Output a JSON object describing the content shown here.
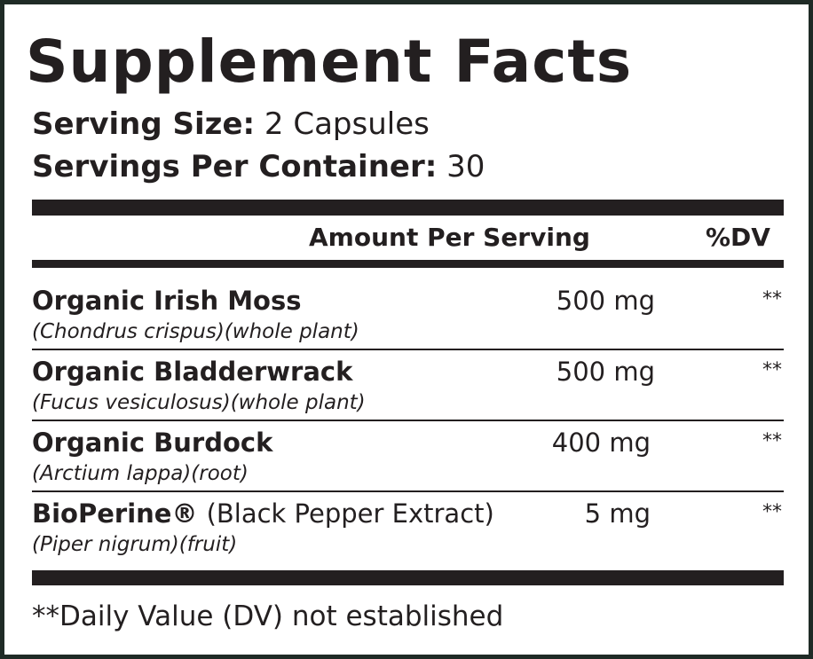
{
  "title": "Supplement Facts",
  "serving_size": {
    "label": "Serving Size:",
    "value": "2 Capsules"
  },
  "servings_per_container": {
    "label": "Servings Per Container:",
    "value": "30"
  },
  "header": {
    "amount": "Amount Per Serving",
    "dv": "%DV"
  },
  "ingredients": [
    {
      "name": "Organic Irish Moss",
      "detail": "(Chondrus crispus)(whole plant)",
      "amount": "500 mg",
      "dv": "**"
    },
    {
      "name": "Organic Bladderwrack",
      "detail": "(Fucus vesiculosus)(whole plant)",
      "amount": "500 mg",
      "dv": "**"
    },
    {
      "name": "Organic Burdock",
      "detail": "(Arctium lappa)(root)",
      "amount": "400 mg",
      "dv": "**"
    },
    {
      "name": "BioPerine®",
      "name_extra": "(Black Pepper Extract)",
      "detail": "(Piper nigrum)(fruit)",
      "amount": "5 mg",
      "dv": "**"
    }
  ],
  "footnote": "**Daily Value (DV) not established"
}
